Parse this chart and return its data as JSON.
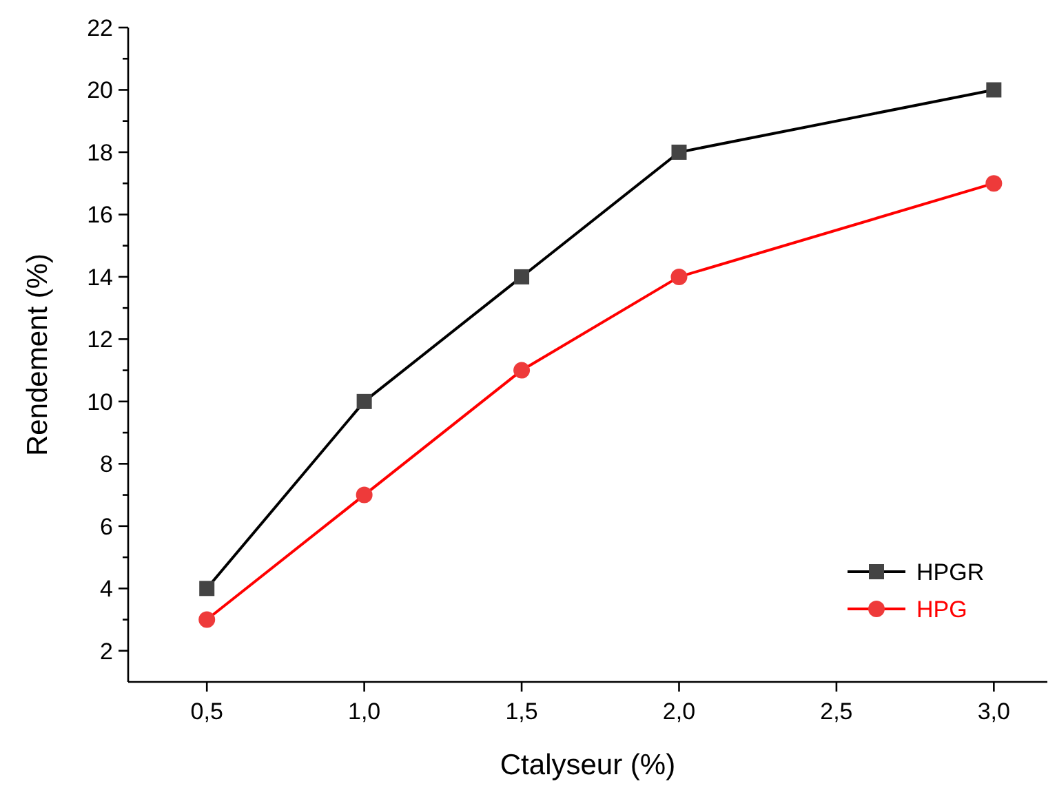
{
  "chart_data": {
    "type": "line",
    "xlabel": "Ctalyseur (%)",
    "ylabel": "Rendement (%)",
    "x": [
      0.5,
      1,
      1.5,
      2,
      3
    ],
    "series": [
      {
        "name": "HPGR",
        "color": "#000000",
        "marker": "square",
        "values": [
          4,
          10,
          14,
          18,
          20
        ]
      },
      {
        "name": "HPG",
        "color": "#ff0000",
        "marker": "circle",
        "values": [
          3,
          7,
          11,
          14,
          17
        ]
      }
    ],
    "xlim": [
      0.25,
      3.17
    ],
    "xticks": [
      {
        "value": 0.5,
        "label": "0,5"
      },
      {
        "value": 1,
        "label": "1,0"
      },
      {
        "value": 1.5,
        "label": "1,5"
      },
      {
        "value": 2,
        "label": "2,0"
      },
      {
        "value": 2.5,
        "label": "2,5"
      },
      {
        "value": 3,
        "label": "3,0"
      }
    ],
    "ylim": [
      1,
      22
    ],
    "yticks": [
      2,
      {
        "value": 3,
        "label": null
      },
      4,
      {
        "value": 5,
        "label": null
      },
      6,
      {
        "value": 7,
        "label": null
      },
      8,
      {
        "value": 9,
        "label": null
      },
      10,
      {
        "value": 11,
        "label": null
      },
      12,
      {
        "value": 13,
        "label": null
      },
      14,
      {
        "value": 15,
        "label": null
      },
      16,
      {
        "value": 17,
        "label": null
      },
      18,
      {
        "value": 19,
        "label": null
      },
      20,
      {
        "value": 21,
        "label": null
      },
      22
    ],
    "legend": "bottom right",
    "grid": false,
    "line_style": "solid"
  }
}
